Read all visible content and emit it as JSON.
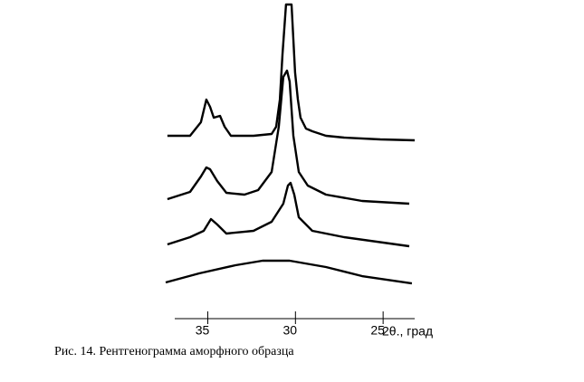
{
  "chart_data": {
    "type": "line",
    "caption": "Рис. 14. Рентгенограмма аморфного образца",
    "x_label": "2θ., град",
    "xlim": [
      37.4,
      23.2
    ],
    "xticks": [
      35,
      30,
      25
    ],
    "ylim": [
      0,
      345
    ],
    "color": "#000000",
    "series": [
      {
        "x": [
          37.3,
          36.01,
          35.39,
          35.08,
          34.87,
          34.66,
          34.3,
          34.04,
          33.68,
          32.39,
          31.36,
          31.1,
          30.89,
          30.74,
          30.54,
          30.22,
          30.02,
          29.86,
          29.71,
          29.4,
          29.04,
          28.26,
          27.23,
          25.16,
          23.2
        ],
        "values": [
          200,
          200,
          215,
          240,
          232,
          220,
          222,
          210,
          200,
          200,
          202,
          210,
          240,
          290,
          345,
          345,
          270,
          240,
          220,
          208,
          205,
          200,
          198,
          196,
          195
        ]
      },
      {
        "x": [
          37.3,
          36.01,
          35.39,
          35.08,
          34.87,
          34.46,
          33.94,
          32.91,
          32.13,
          31.36,
          30.95,
          30.69,
          30.48,
          30.33,
          30.12,
          29.81,
          29.3,
          28.26,
          26.2,
          23.51
        ],
        "values": [
          130,
          138,
          155,
          165,
          163,
          150,
          137,
          135,
          140,
          160,
          210,
          265,
          272,
          260,
          200,
          160,
          145,
          135,
          128,
          125
        ]
      },
      {
        "x": [
          37.3,
          36.01,
          35.23,
          34.82,
          34.46,
          33.94,
          32.39,
          31.36,
          30.69,
          30.43,
          30.28,
          30.07,
          29.81,
          29.04,
          27.23,
          23.51
        ],
        "values": [
          80,
          88,
          95,
          108,
          102,
          92,
          95,
          105,
          125,
          145,
          148,
          135,
          110,
          95,
          88,
          78
        ]
      },
      {
        "x": [
          37.4,
          35.49,
          33.42,
          31.88,
          30.33,
          28.26,
          26.2,
          23.36
        ],
        "values": [
          38,
          48,
          57,
          62,
          62,
          55,
          45,
          37
        ]
      }
    ]
  }
}
